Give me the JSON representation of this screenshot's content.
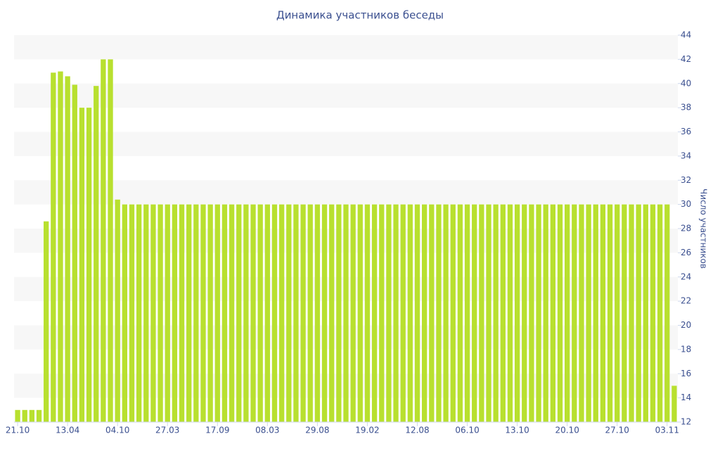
{
  "chart_data": {
    "type": "bar",
    "title": "Динамика участников беседы",
    "y_axis_label": "Число участников",
    "categories": [
      "21.10",
      null,
      null,
      null,
      null,
      null,
      null,
      "13.04",
      null,
      null,
      null,
      null,
      null,
      null,
      "04.10",
      null,
      null,
      null,
      null,
      null,
      null,
      "27.03",
      null,
      null,
      null,
      null,
      null,
      null,
      "17.09",
      null,
      null,
      null,
      null,
      null,
      null,
      "08.03",
      null,
      null,
      null,
      null,
      null,
      null,
      "29.08",
      null,
      null,
      null,
      null,
      null,
      null,
      "19.02",
      null,
      null,
      null,
      null,
      null,
      null,
      "12.08",
      null,
      null,
      null,
      null,
      null,
      null,
      "06.10",
      null,
      null,
      null,
      null,
      null,
      null,
      "13.10",
      null,
      null,
      null,
      null,
      null,
      null,
      "20.10",
      null,
      null,
      null,
      null,
      null,
      null,
      "27.10",
      null,
      null,
      null,
      null,
      null,
      null,
      "03.11",
      null
    ],
    "values": [
      13,
      13,
      13,
      13,
      28.6,
      40.9,
      41,
      40.6,
      39.9,
      38,
      38,
      39.8,
      42,
      42,
      30.4,
      30,
      30,
      30,
      30,
      30,
      30,
      30,
      30,
      30,
      30,
      30,
      30,
      30,
      30,
      30,
      30,
      30,
      30,
      30,
      30,
      30,
      30,
      30,
      30,
      30,
      30,
      30,
      30,
      30,
      30,
      30,
      30,
      30,
      30,
      30,
      30,
      30,
      30,
      30,
      30,
      30,
      30,
      30,
      30,
      30,
      30,
      30,
      30,
      30,
      30,
      30,
      30,
      30,
      30,
      30,
      30,
      30,
      30,
      30,
      30,
      30,
      30,
      30,
      30,
      30,
      30,
      30,
      30,
      30,
      30,
      30,
      30,
      30,
      30,
      30,
      30,
      30,
      15
    ],
    "color": "#b8e02f",
    "ylim": [
      12,
      44
    ],
    "yticks": [
      12,
      14,
      16,
      18,
      20,
      22,
      24,
      26,
      28,
      30,
      32,
      34,
      36,
      38,
      40,
      42,
      44
    ],
    "y_axis_side": "right",
    "grid": "bands"
  }
}
